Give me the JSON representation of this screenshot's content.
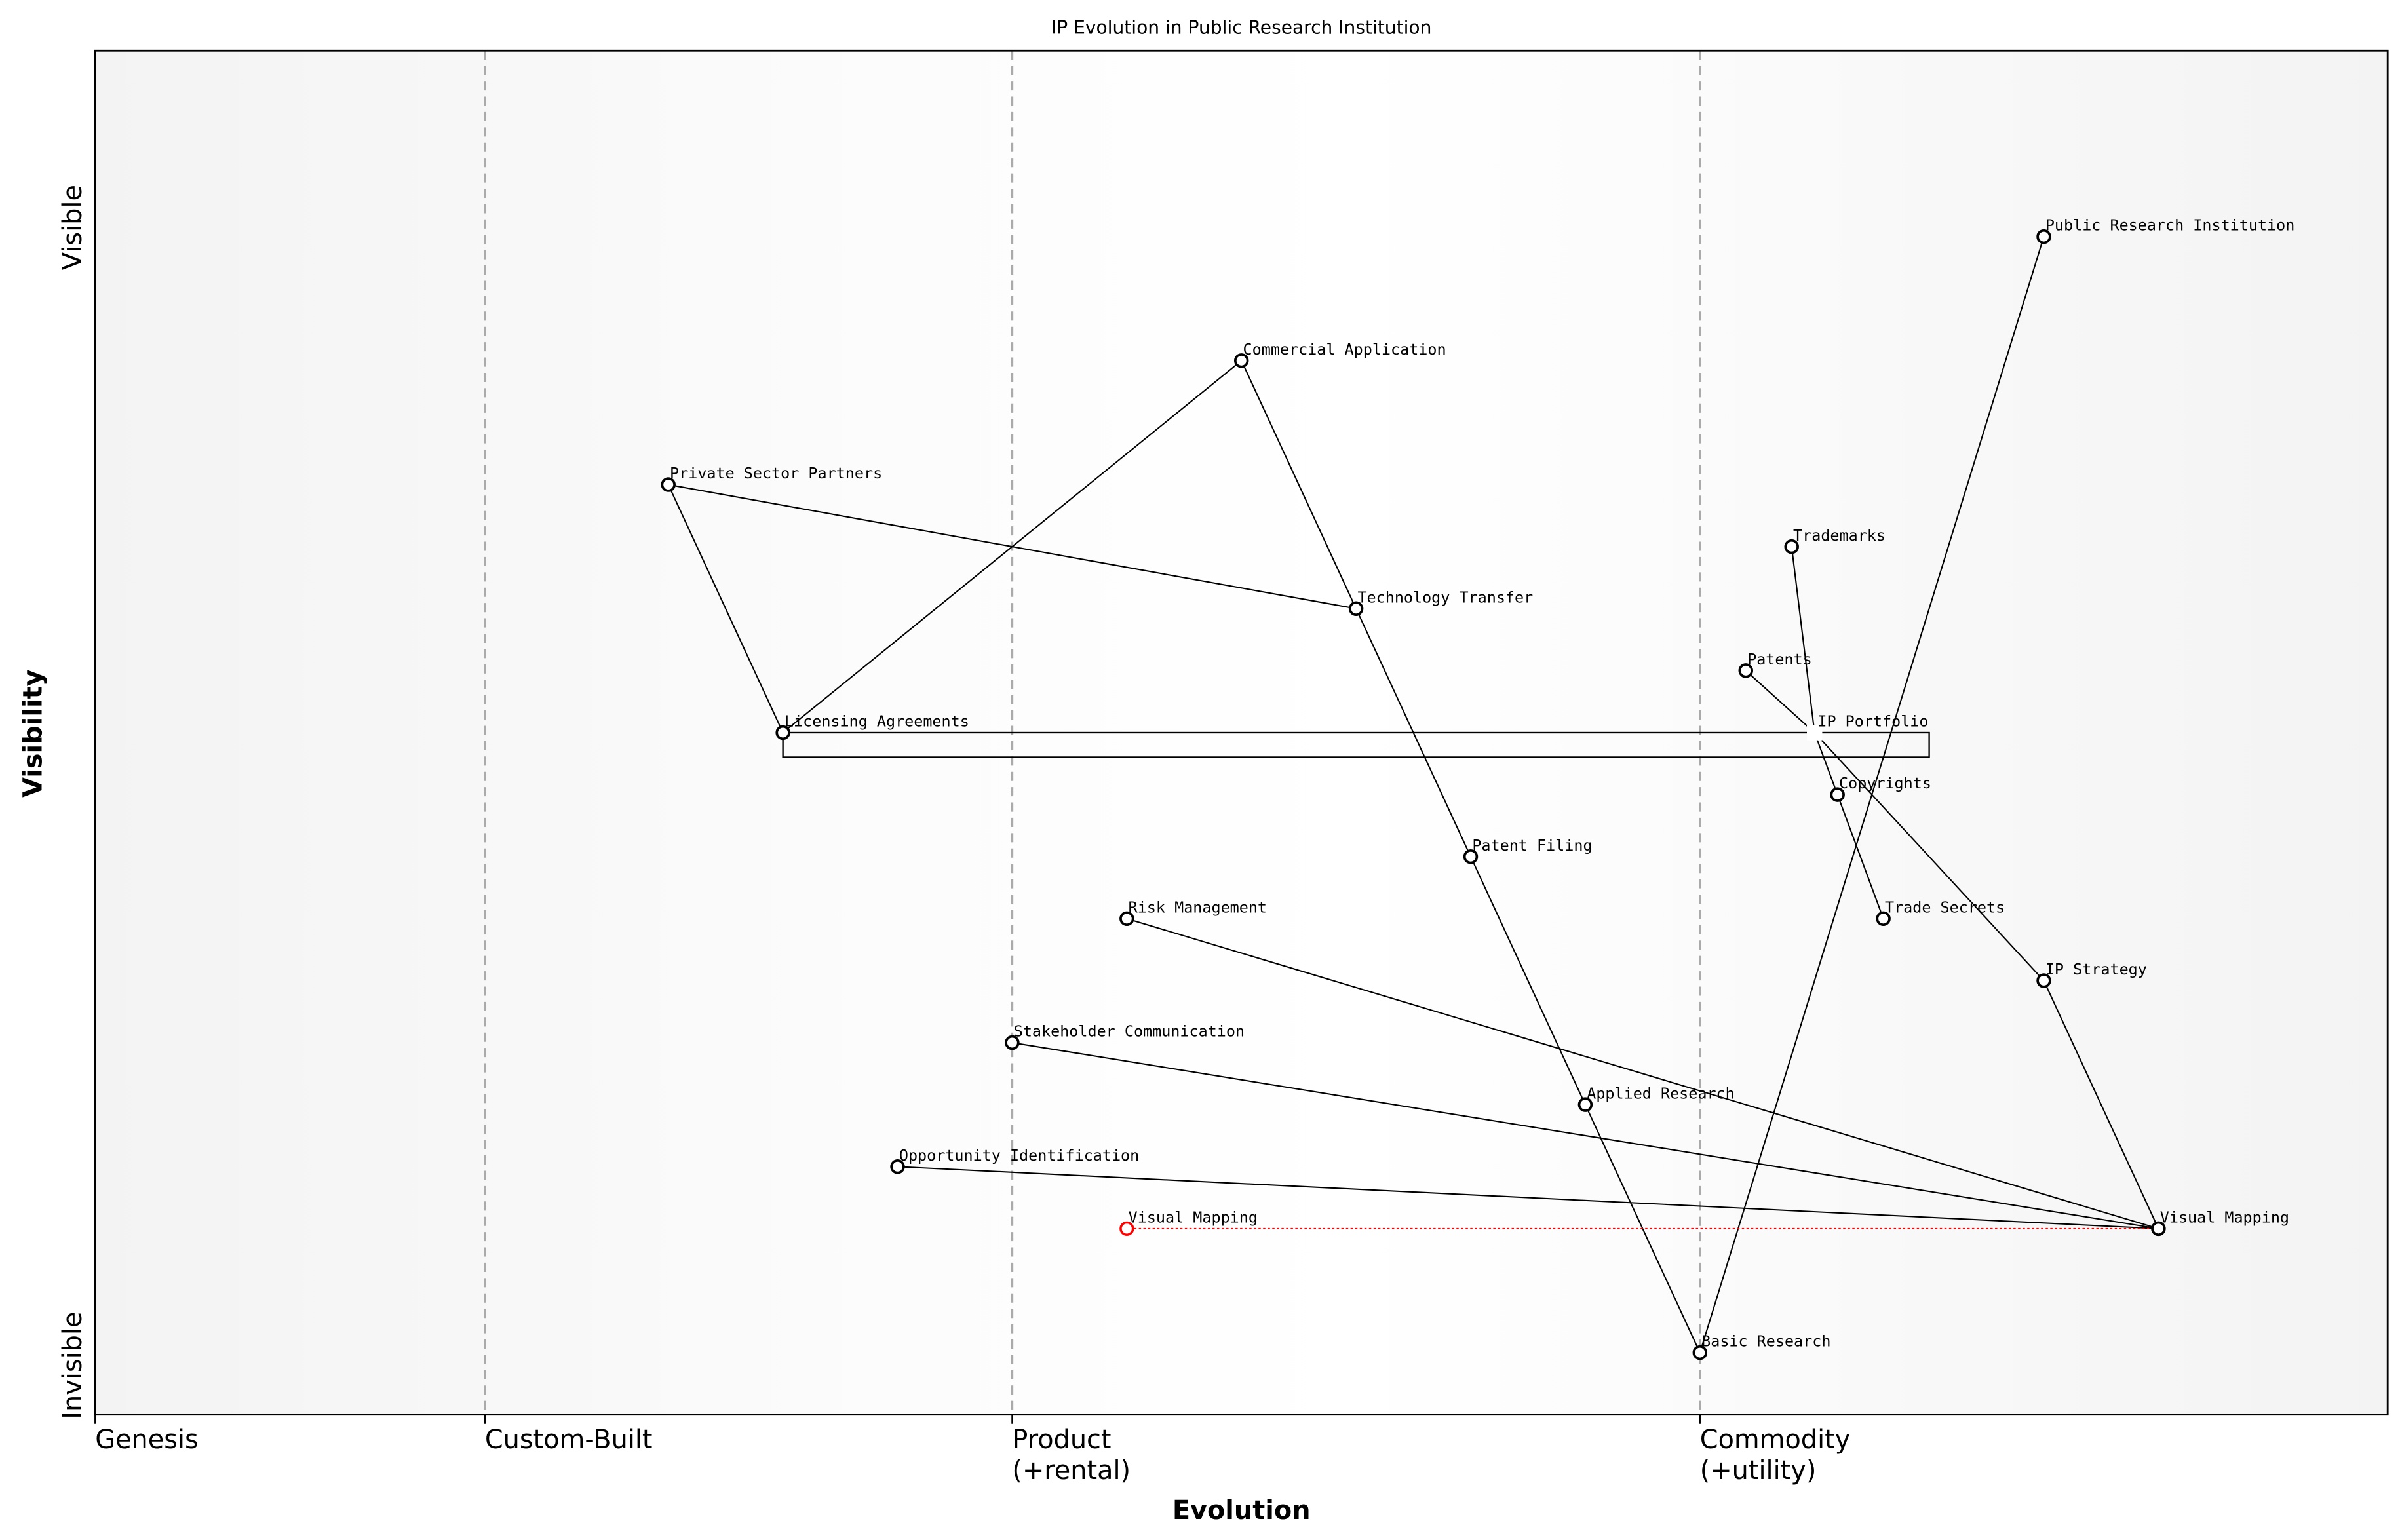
{
  "chart_data": {
    "type": "wardley-map",
    "title": "IP Evolution in Public Research Institution",
    "xlabel": "Evolution",
    "ylabel": "Visibility",
    "xlim": [
      0,
      1
    ],
    "ylim": [
      -0.05,
      1.05
    ],
    "x_stages": [
      {
        "label": "Genesis",
        "x": 0
      },
      {
        "label": "Custom-Built",
        "x": 0.17
      },
      {
        "label": "Product\n(+rental)",
        "x": 0.4
      },
      {
        "label": "Commodity\n(+utility)",
        "x": 0.7
      }
    ],
    "y_ticks": {
      "top": "Visible",
      "bottom": "Invisible"
    },
    "components": [
      {
        "name": "Public Research Institution",
        "x": 0.85,
        "y": 0.9
      },
      {
        "name": "Commercial Application",
        "x": 0.5,
        "y": 0.8
      },
      {
        "name": "Private Sector Partners",
        "x": 0.25,
        "y": 0.7
      },
      {
        "name": "Trademarks",
        "x": 0.74,
        "y": 0.65
      },
      {
        "name": "Technology Transfer",
        "x": 0.55,
        "y": 0.6
      },
      {
        "name": "Patents",
        "x": 0.72,
        "y": 0.55
      },
      {
        "name": "Licensing Agreements",
        "x": 0.3,
        "y": 0.5
      },
      {
        "name": "Copyrights",
        "x": 0.76,
        "y": 0.45
      },
      {
        "name": "Patent Filing",
        "x": 0.6,
        "y": 0.4
      },
      {
        "name": "Risk Management",
        "x": 0.45,
        "y": 0.35
      },
      {
        "name": "Trade Secrets",
        "x": 0.78,
        "y": 0.35
      },
      {
        "name": "IP Strategy",
        "x": 0.85,
        "y": 0.3
      },
      {
        "name": "Stakeholder Communication",
        "x": 0.4,
        "y": 0.25
      },
      {
        "name": "Applied Research",
        "x": 0.65,
        "y": 0.2
      },
      {
        "name": "Opportunity Identification",
        "x": 0.35,
        "y": 0.15
      },
      {
        "name": "Visual Mapping",
        "x": 0.9,
        "y": 0.1
      },
      {
        "name": "Basic Research",
        "x": 0.7,
        "y": 0.0
      }
    ],
    "pipeline": {
      "name": "IP Portfolio",
      "x": 0.75,
      "y": 0.5,
      "x_start": 0.3,
      "x_end": 0.8
    },
    "evolve": {
      "name": "Visual Mapping",
      "from_x": 0.9,
      "to_x": 0.45,
      "y": 0.1,
      "color": "#ff0000"
    },
    "links": [
      [
        "Public Research Institution",
        "Basic Research"
      ],
      [
        "Basic Research",
        "Applied Research"
      ],
      [
        "Applied Research",
        "Patent Filing"
      ],
      [
        "Patent Filing",
        "Technology Transfer"
      ],
      [
        "Technology Transfer",
        "Commercial Application"
      ],
      [
        "Technology Transfer",
        "Private Sector Partners"
      ],
      [
        "Private Sector Partners",
        "Licensing Agreements"
      ],
      [
        "Licensing Agreements",
        "Commercial Application"
      ],
      [
        "Trademarks",
        "IP Portfolio"
      ],
      [
        "Patents",
        "IP Portfolio"
      ],
      [
        "IP Portfolio",
        "Copyrights"
      ],
      [
        "Copyrights",
        "Trade Secrets"
      ],
      [
        "IP Portfolio",
        "IP Strategy"
      ],
      [
        "IP Strategy",
        "Visual Mapping"
      ],
      [
        "Risk Management",
        "Visual Mapping"
      ],
      [
        "Stakeholder Communication",
        "Visual Mapping"
      ],
      [
        "Opportunity Identification",
        "Visual Mapping"
      ]
    ]
  }
}
